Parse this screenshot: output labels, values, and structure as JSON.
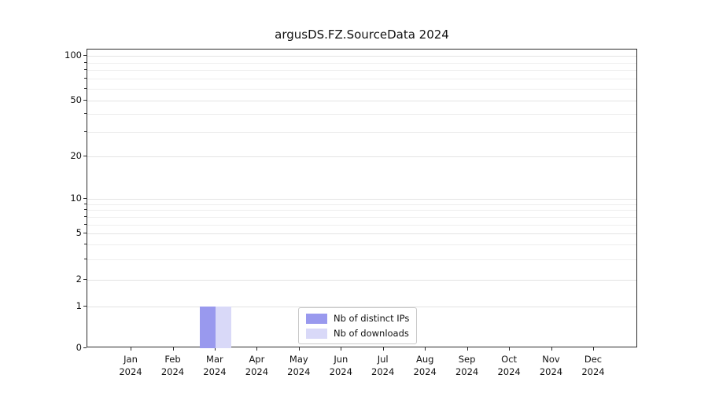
{
  "chart_data": {
    "type": "bar",
    "title": "argusDS.FZ.SourceData 2024",
    "categories": [
      "Jan",
      "Feb",
      "Mar",
      "Apr",
      "May",
      "Jun",
      "Jul",
      "Aug",
      "Sep",
      "Oct",
      "Nov",
      "Dec"
    ],
    "category_year": "2024",
    "xlabel": "",
    "ylabel": "",
    "yscale": "symlog",
    "ylim": [
      0,
      100
    ],
    "yticks": [
      0,
      1,
      2,
      5,
      10,
      20,
      50,
      100
    ],
    "minor_gridlines": [
      3,
      4,
      6,
      7,
      8,
      9,
      30,
      40,
      60,
      70,
      80,
      90
    ],
    "grid": "horizontal",
    "legend_position": "lower-center-inside",
    "series": [
      {
        "name": "Nb of distinct IPs",
        "color": "#9999ee",
        "values": [
          0,
          0,
          1,
          0,
          0,
          0,
          0,
          0,
          0,
          0,
          0,
          0
        ]
      },
      {
        "name": "Nb of downloads",
        "color": "#d9d9f8",
        "values": [
          0,
          0,
          1,
          0,
          0,
          0,
          0,
          0,
          0,
          0,
          0,
          0
        ]
      }
    ]
  }
}
